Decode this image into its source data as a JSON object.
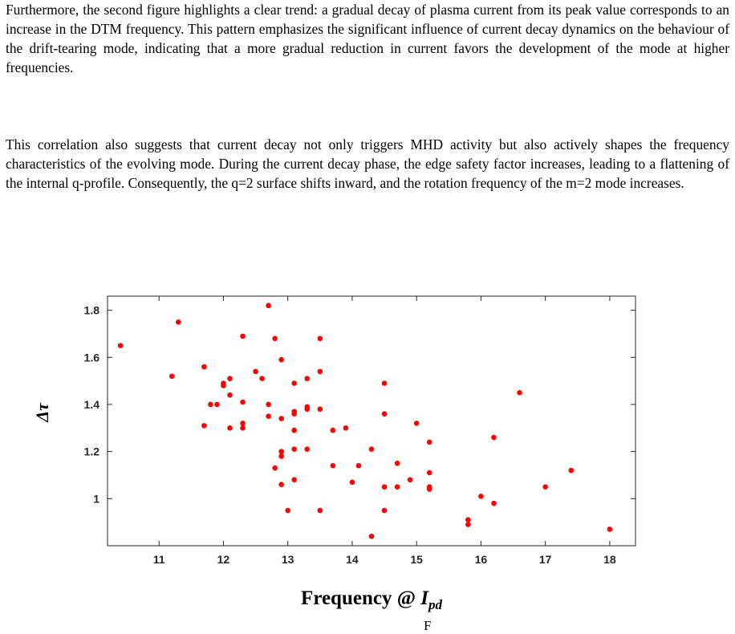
{
  "text": {
    "paragraph1": "Furthermore, the second figure highlights a clear trend: a gradual decay of plasma current from its peak value corresponds to an increase in the DTM frequency. This pattern emphasizes the significant influence of current decay dynamics on the behaviour of the drift-tearing mode, indicating that a more gradual reduction in current favors the development of the mode at higher frequencies.",
    "paragraph2": "This correlation also suggests that current decay not only triggers MHD activity but also actively shapes the frequency characteristics of the evolving mode. During the current decay phase, the edge safety factor increases, leading to a flattening of the internal q-profile. Consequently, the q=2 surface shifts inward, and the rotation frequency of the m=2 mode increases.",
    "trailing": "F"
  },
  "chart_data": {
    "type": "scatter",
    "xlabel": "Frequency @ I_pd",
    "xlabel_main": "Frequency @ ",
    "xlabel_var": "I",
    "xlabel_sub": "pd",
    "ylabel": "Δτ",
    "xlim": [
      10.2,
      18.4
    ],
    "ylim": [
      0.8,
      1.86
    ],
    "xticks": [
      11,
      12,
      13,
      14,
      15,
      16,
      17,
      18
    ],
    "yticks": [
      1,
      1.2,
      1.4,
      1.6,
      1.8
    ],
    "grid": false,
    "marker_color": "#ff0000",
    "points": [
      [
        10.4,
        1.65
      ],
      [
        11.2,
        1.52
      ],
      [
        11.3,
        1.75
      ],
      [
        11.7,
        1.56
      ],
      [
        11.7,
        1.31
      ],
      [
        11.8,
        1.4
      ],
      [
        11.9,
        1.4
      ],
      [
        12.0,
        1.49
      ],
      [
        12.0,
        1.48
      ],
      [
        12.1,
        1.51
      ],
      [
        12.1,
        1.44
      ],
      [
        12.1,
        1.3
      ],
      [
        12.3,
        1.69
      ],
      [
        12.3,
        1.41
      ],
      [
        12.3,
        1.32
      ],
      [
        12.3,
        1.3
      ],
      [
        12.5,
        1.54
      ],
      [
        12.6,
        1.51
      ],
      [
        12.7,
        1.82
      ],
      [
        12.7,
        1.4
      ],
      [
        12.7,
        1.35
      ],
      [
        12.8,
        1.68
      ],
      [
        12.8,
        1.13
      ],
      [
        12.9,
        1.59
      ],
      [
        12.9,
        1.34
      ],
      [
        12.9,
        1.2
      ],
      [
        12.9,
        1.18
      ],
      [
        12.9,
        1.06
      ],
      [
        13.0,
        0.95
      ],
      [
        13.1,
        1.49
      ],
      [
        13.1,
        1.37
      ],
      [
        13.1,
        1.36
      ],
      [
        13.1,
        1.29
      ],
      [
        13.1,
        1.21
      ],
      [
        13.1,
        1.08
      ],
      [
        13.3,
        1.51
      ],
      [
        13.3,
        1.39
      ],
      [
        13.3,
        1.38
      ],
      [
        13.3,
        1.21
      ],
      [
        13.5,
        1.68
      ],
      [
        13.5,
        1.54
      ],
      [
        13.5,
        1.38
      ],
      [
        13.5,
        0.95
      ],
      [
        13.7,
        1.29
      ],
      [
        13.7,
        1.14
      ],
      [
        13.9,
        1.3
      ],
      [
        14.0,
        1.07
      ],
      [
        14.1,
        1.14
      ],
      [
        14.3,
        1.21
      ],
      [
        14.3,
        0.84
      ],
      [
        14.5,
        1.49
      ],
      [
        14.5,
        1.36
      ],
      [
        14.5,
        1.05
      ],
      [
        14.5,
        0.95
      ],
      [
        14.7,
        1.15
      ],
      [
        14.7,
        1.05
      ],
      [
        14.9,
        1.08
      ],
      [
        15.0,
        1.32
      ],
      [
        15.2,
        1.24
      ],
      [
        15.2,
        1.11
      ],
      [
        15.2,
        1.05
      ],
      [
        15.2,
        1.04
      ],
      [
        15.8,
        0.91
      ],
      [
        15.8,
        0.89
      ],
      [
        16.0,
        1.01
      ],
      [
        16.2,
        1.26
      ],
      [
        16.2,
        0.98
      ],
      [
        16.6,
        1.45
      ],
      [
        17.0,
        1.05
      ],
      [
        17.4,
        1.12
      ],
      [
        18.0,
        0.87
      ]
    ]
  }
}
